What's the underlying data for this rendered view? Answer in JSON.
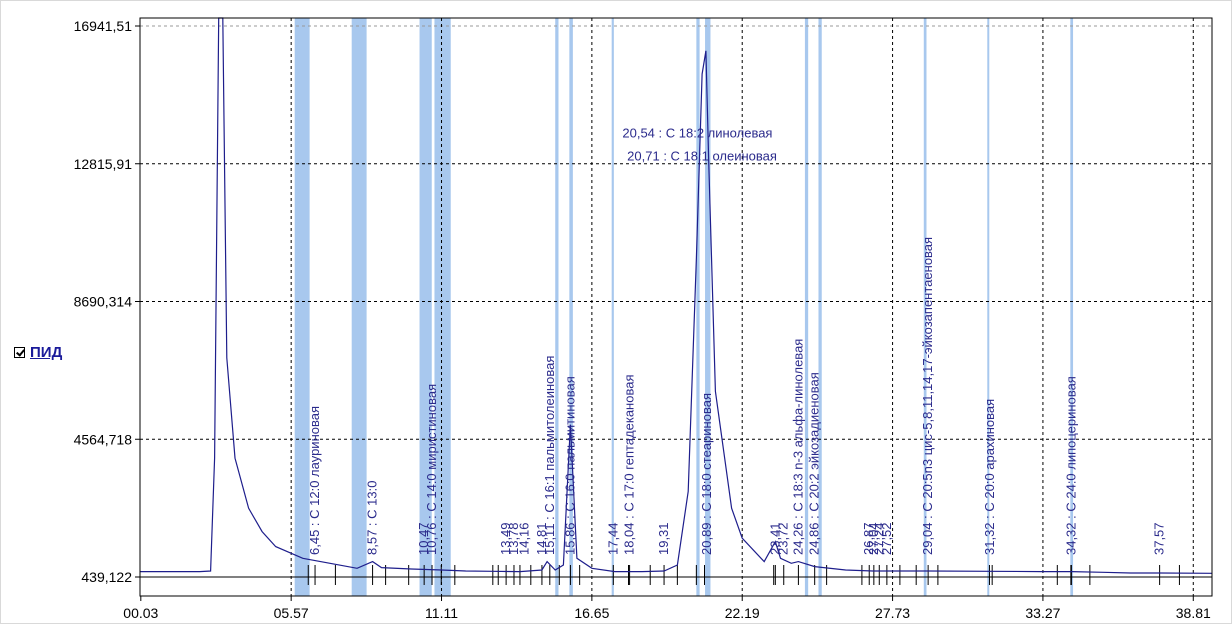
{
  "legend": {
    "label": "ПИД",
    "checked": true
  },
  "colors": {
    "trace": "#1e1e8c",
    "baseline": "#000000",
    "band": "#a8c8ee",
    "grid": "#000000",
    "annotation": "#2b2b8c"
  },
  "chart_data": {
    "type": "line",
    "title": "",
    "xlabel": "",
    "ylabel": "",
    "xlim": [
      0.0,
      39.5
    ],
    "ylim": [
      439.122,
      16941.51
    ],
    "grid": true,
    "y_ticks": [
      "439,122",
      "4564,718",
      "8690,314",
      "12815,91",
      "16941,51"
    ],
    "y_tick_values": [
      439.122,
      4564.718,
      8690.314,
      12815.91,
      16941.51
    ],
    "x_ticks": [
      "00.03",
      "05.57",
      "11.11",
      "16.65",
      "22.19",
      "27.73",
      "33.27",
      "38.81"
    ],
    "x_tick_values": [
      0.03,
      5.57,
      11.11,
      16.65,
      22.19,
      27.73,
      33.27,
      38.81
    ],
    "series": [
      {
        "values": [
          [
            0.0,
            600
          ],
          [
            2.2,
            600
          ],
          [
            2.6,
            620
          ],
          [
            2.75,
            4000
          ],
          [
            2.9,
            17500
          ],
          [
            3.05,
            17500
          ],
          [
            3.2,
            7000
          ],
          [
            3.5,
            4000
          ],
          [
            4.0,
            2500
          ],
          [
            4.5,
            1800
          ],
          [
            5.0,
            1350
          ],
          [
            6.0,
            1000
          ],
          [
            7.0,
            850
          ],
          [
            8.0,
            700
          ],
          [
            8.57,
            900
          ],
          [
            8.9,
            720
          ],
          [
            10.0,
            680
          ],
          [
            11.11,
            650
          ],
          [
            12.0,
            620
          ],
          [
            13.0,
            610
          ],
          [
            14.0,
            600
          ],
          [
            14.81,
            650
          ],
          [
            15.0,
            900
          ],
          [
            15.3,
            650
          ],
          [
            15.6,
            800
          ],
          [
            15.86,
            5000
          ],
          [
            16.1,
            1000
          ],
          [
            16.65,
            700
          ],
          [
            17.5,
            600
          ],
          [
            18.5,
            600
          ],
          [
            19.31,
            620
          ],
          [
            19.8,
            800
          ],
          [
            20.2,
            3000
          ],
          [
            20.5,
            10000
          ],
          [
            20.71,
            15500
          ],
          [
            20.85,
            16200
          ],
          [
            20.95,
            13000
          ],
          [
            21.2,
            6000
          ],
          [
            21.8,
            2500
          ],
          [
            22.19,
            1600
          ],
          [
            23.0,
            900
          ],
          [
            23.41,
            1500
          ],
          [
            23.6,
            1000
          ],
          [
            24.0,
            850
          ],
          [
            24.26,
            900
          ],
          [
            24.86,
            750
          ],
          [
            26.0,
            650
          ],
          [
            27.0,
            620
          ],
          [
            27.73,
            620
          ],
          [
            29.04,
            620
          ],
          [
            31.32,
            610
          ],
          [
            33.27,
            600
          ],
          [
            34.32,
            600
          ],
          [
            35.5,
            580
          ],
          [
            36.5,
            560
          ],
          [
            37.57,
            560
          ],
          [
            39.5,
            550
          ]
        ]
      }
    ],
    "highlight_bands": [
      [
        5.7,
        6.25
      ],
      [
        7.8,
        8.35
      ],
      [
        10.3,
        10.75
      ],
      [
        10.85,
        11.45
      ],
      [
        15.3,
        15.42
      ],
      [
        15.82,
        15.95
      ],
      [
        17.38,
        17.46
      ],
      [
        20.5,
        20.62
      ],
      [
        20.82,
        21.02
      ],
      [
        24.5,
        24.62
      ],
      [
        25.0,
        25.12
      ],
      [
        28.88,
        28.98
      ],
      [
        31.22,
        31.28
      ],
      [
        34.28,
        34.38
      ]
    ],
    "baseline_ticks": [
      6.2,
      6.45,
      7.2,
      8.57,
      9.05,
      9.9,
      10.47,
      10.76,
      11.1,
      11.6,
      13.0,
      13.2,
      13.49,
      13.78,
      14.0,
      14.4,
      14.81,
      15.1,
      15.45,
      15.86,
      16.2,
      17.44,
      18.0,
      18.04,
      18.8,
      19.31,
      19.8,
      20.5,
      20.8,
      23.35,
      23.41,
      23.72,
      24.26,
      24.86,
      25.3,
      26.6,
      26.87,
      27.04,
      27.24,
      27.52,
      28.0,
      28.6,
      29.04,
      29.4,
      31.3,
      31.4,
      33.8,
      34.3,
      34.32,
      35.0,
      37.57,
      38.3
    ],
    "peak_labels": [
      {
        "rt": 6.45,
        "text": "6,45 : C 12:0 лауриновая"
      },
      {
        "rt": 8.57,
        "text": "8,57 : C 13:0"
      },
      {
        "rt": 10.47,
        "text": "10,47"
      },
      {
        "rt": 10.76,
        "text": "10,76 : C 14:0 миристиновая"
      },
      {
        "rt": 13.49,
        "text": "13,49"
      },
      {
        "rt": 13.78,
        "text": "13,78"
      },
      {
        "rt": 14.16,
        "text": "14,16"
      },
      {
        "rt": 14.81,
        "text": "14,81"
      },
      {
        "rt": 15.11,
        "text": "15,11 : C 16:1 пальмитолеиновая"
      },
      {
        "rt": 15.86,
        "text": "15,86 : C 16:0 пальмитиновая"
      },
      {
        "rt": 17.44,
        "text": "17,44"
      },
      {
        "rt": 18.04,
        "text": "18,04 : C 17:0 гептадекановая"
      },
      {
        "rt": 19.31,
        "text": "19,31"
      },
      {
        "rt": 20.89,
        "text": "20,89 : C 18:0 стеариновая"
      },
      {
        "rt": 23.41,
        "text": "23,41"
      },
      {
        "rt": 23.72,
        "text": "23,72"
      },
      {
        "rt": 24.26,
        "text": "24,26 : C 18:3 n-3 альфа-линолевая"
      },
      {
        "rt": 24.86,
        "text": "24,86 : C 20:2 эйкозадиеновая"
      },
      {
        "rt": 26.87,
        "text": "26,87"
      },
      {
        "rt": 27.04,
        "text": "27,04"
      },
      {
        "rt": 27.24,
        "text": "27,24"
      },
      {
        "rt": 27.52,
        "text": "27,52"
      },
      {
        "rt": 29.04,
        "text": "29,04 : C 20:5n3 цис-5,8,11,14,17-эйкозапентаеновая"
      },
      {
        "rt": 31.32,
        "text": "31,32 : C 20:0 арахиновая"
      },
      {
        "rt": 34.32,
        "text": "34,32 : C 24:0 липоцериновая"
      },
      {
        "rt": 37.57,
        "text": "37,57"
      }
    ],
    "horizontal_labels": [
      {
        "rt": 20.54,
        "text": "20,54 : C 18:2 линолевая",
        "y": 13600
      },
      {
        "rt": 20.71,
        "text": "20,71 : C 18:1 олеиновая",
        "y": 12920
      }
    ]
  }
}
